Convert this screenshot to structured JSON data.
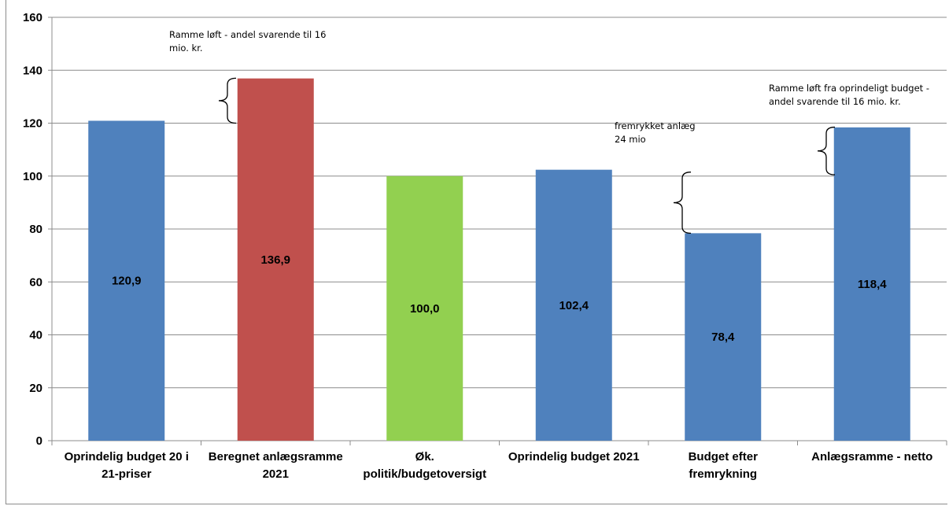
{
  "chart_data": {
    "type": "bar",
    "categories": [
      [
        "Oprindelig budget 20 i",
        "21-priser"
      ],
      [
        "Beregnet anlægsramme",
        "2021"
      ],
      [
        "Øk.",
        "politik/budgetoversigt"
      ],
      [
        "Oprindelig budget 2021"
      ],
      [
        "Budget efter",
        "fremrykning"
      ],
      [
        "Anlægsramme - netto"
      ]
    ],
    "values": [
      120.9,
      136.9,
      100.0,
      102.4,
      78.4,
      118.4
    ],
    "value_labels": [
      "120,9",
      "136,9",
      "100,0",
      "102,4",
      "78,4",
      "118,4"
    ],
    "colors": [
      "#4f81bd",
      "#c0504d",
      "#92d050",
      "#4f81bd",
      "#4f81bd",
      "#4f81bd"
    ],
    "ylim": [
      0,
      160
    ],
    "yticks": [
      0,
      20,
      40,
      60,
      80,
      100,
      120,
      140,
      160
    ],
    "grid": true,
    "legend": "none",
    "annotations": [
      {
        "lines": [
          "Ramme løft -  andel svarende til  16",
          "mio. kr."
        ],
        "bar_index": 1,
        "brace_from": 120,
        "brace_to": 137
      },
      {
        "lines": [
          "fremrykket anlæg",
          "24 mio"
        ],
        "bar_index": 4,
        "brace_from": 78.4,
        "brace_to": 101.5
      },
      {
        "lines": [
          "Ramme løft fra oprindeligt budget -",
          "andel svarende til  16 mio. kr."
        ],
        "bar_index": 5,
        "brace_from": 100.5,
        "brace_to": 118.5
      }
    ]
  }
}
